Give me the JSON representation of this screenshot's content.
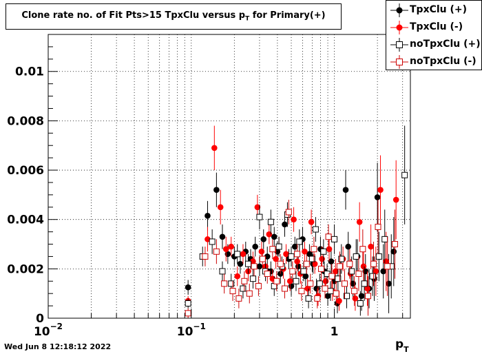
{
  "title": "Clone rate no. of Fit Pts>15 TpxClu versus p",
  "title_sub": "T",
  "title_tail": " for Primary(+)",
  "footer": "Wed Jun  8 12:18:12 2022",
  "chart_data": {
    "type": "scatter",
    "x_scale": "log",
    "xlim": [
      0.01,
      3.4
    ],
    "ylim": [
      0,
      0.0115
    ],
    "grid": true,
    "legend_position": "top-right",
    "xlabel": "p",
    "xlabel_sub": "T",
    "x_ticks": [
      {
        "value": 0.01,
        "base": "10",
        "exp": "−2"
      },
      {
        "value": 0.1,
        "base": "10",
        "exp": "−1"
      },
      {
        "value": 1,
        "base": "1",
        "exp": ""
      }
    ],
    "y_ticks": [
      {
        "value": 0,
        "label": "0"
      },
      {
        "value": 0.002,
        "label": "0.002"
      },
      {
        "value": 0.004,
        "label": "0.004"
      },
      {
        "value": 0.006,
        "label": "0.006"
      },
      {
        "value": 0.008,
        "label": "0.008"
      },
      {
        "value": 0.01,
        "label": "0.01"
      }
    ],
    "series": [
      {
        "name": "TpxClu (+)",
        "marker": "filled-circle",
        "color": "#000000",
        "points": [
          [
            0.095,
            0.00125,
            0.0003
          ],
          [
            0.13,
            0.00415,
            0.0006
          ],
          [
            0.15,
            0.0052,
            0.0007
          ],
          [
            0.165,
            0.0033,
            0.0005
          ],
          [
            0.18,
            0.0026,
            0.0004
          ],
          [
            0.2,
            0.0025,
            0.0004
          ],
          [
            0.22,
            0.0022,
            0.0004
          ],
          [
            0.24,
            0.0027,
            0.0004
          ],
          [
            0.26,
            0.0024,
            0.0004
          ],
          [
            0.28,
            0.0029,
            0.0004
          ],
          [
            0.3,
            0.0021,
            0.0004
          ],
          [
            0.32,
            0.0032,
            0.0004
          ],
          [
            0.34,
            0.0025,
            0.0004
          ],
          [
            0.36,
            0.0019,
            0.0004
          ],
          [
            0.38,
            0.0033,
            0.0004
          ],
          [
            0.4,
            0.0027,
            0.0004
          ],
          [
            0.42,
            0.0018,
            0.0004
          ],
          [
            0.45,
            0.0038,
            0.0005
          ],
          [
            0.48,
            0.0024,
            0.0004
          ],
          [
            0.5,
            0.0013,
            0.0004
          ],
          [
            0.53,
            0.0029,
            0.0004
          ],
          [
            0.56,
            0.0021,
            0.0004
          ],
          [
            0.6,
            0.0032,
            0.0005
          ],
          [
            0.63,
            0.0017,
            0.0004
          ],
          [
            0.67,
            0.0026,
            0.0004
          ],
          [
            0.71,
            0.0022,
            0.0004
          ],
          [
            0.75,
            0.0012,
            0.0004
          ],
          [
            0.8,
            0.0028,
            0.0005
          ],
          [
            0.85,
            0.0019,
            0.0004
          ],
          [
            0.9,
            0.0009,
            0.0004
          ],
          [
            0.95,
            0.0023,
            0.0005
          ],
          [
            1.0,
            0.0015,
            0.0005
          ],
          [
            1.05,
            0.0006,
            0.0004
          ],
          [
            1.1,
            0.0021,
            0.0005
          ],
          [
            1.2,
            0.0052,
            0.0008
          ],
          [
            1.25,
            0.0029,
            0.0006
          ],
          [
            1.35,
            0.0014,
            0.0006
          ],
          [
            1.45,
            0.0025,
            0.0007
          ],
          [
            1.55,
            0.0009,
            0.0006
          ],
          [
            1.65,
            0.0019,
            0.0007
          ],
          [
            1.75,
            0.0012,
            0.0008
          ],
          [
            1.9,
            0.0016,
            0.0009
          ],
          [
            2.0,
            0.0049,
            0.0014
          ],
          [
            2.2,
            0.0019,
            0.0011
          ],
          [
            2.4,
            0.0014,
            0.0012
          ],
          [
            2.6,
            0.0027,
            0.0014
          ]
        ]
      },
      {
        "name": "TpxClu (-)",
        "marker": "filled-circle",
        "color": "#ff0000",
        "points": [
          [
            0.095,
            0.0007,
            0.0002
          ],
          [
            0.13,
            0.0032,
            0.0005
          ],
          [
            0.145,
            0.0069,
            0.0009
          ],
          [
            0.16,
            0.0045,
            0.0007
          ],
          [
            0.175,
            0.0028,
            0.0005
          ],
          [
            0.19,
            0.0029,
            0.0004
          ],
          [
            0.21,
            0.0017,
            0.0004
          ],
          [
            0.23,
            0.0026,
            0.0004
          ],
          [
            0.25,
            0.0019,
            0.0004
          ],
          [
            0.27,
            0.0023,
            0.0004
          ],
          [
            0.29,
            0.0045,
            0.0005
          ],
          [
            0.31,
            0.0027,
            0.0004
          ],
          [
            0.33,
            0.0021,
            0.0004
          ],
          [
            0.35,
            0.0034,
            0.0004
          ],
          [
            0.37,
            0.0016,
            0.0004
          ],
          [
            0.39,
            0.0024,
            0.0004
          ],
          [
            0.41,
            0.0029,
            0.0004
          ],
          [
            0.44,
            0.002,
            0.0004
          ],
          [
            0.46,
            0.0026,
            0.0004
          ],
          [
            0.49,
            0.0015,
            0.0004
          ],
          [
            0.52,
            0.004,
            0.0005
          ],
          [
            0.55,
            0.0023,
            0.0004
          ],
          [
            0.58,
            0.0018,
            0.0004
          ],
          [
            0.62,
            0.0027,
            0.0004
          ],
          [
            0.65,
            0.0012,
            0.0004
          ],
          [
            0.69,
            0.0039,
            0.0005
          ],
          [
            0.73,
            0.0022,
            0.0004
          ],
          [
            0.77,
            0.0009,
            0.0004
          ],
          [
            0.82,
            0.0024,
            0.0005
          ],
          [
            0.87,
            0.0015,
            0.0004
          ],
          [
            0.92,
            0.0028,
            0.0005
          ],
          [
            0.97,
            0.0011,
            0.0004
          ],
          [
            1.02,
            0.0019,
            0.0005
          ],
          [
            1.08,
            0.0007,
            0.0004
          ],
          [
            1.15,
            0.0024,
            0.0005
          ],
          [
            1.3,
            0.0018,
            0.0006
          ],
          [
            1.4,
            0.0008,
            0.0005
          ],
          [
            1.5,
            0.0039,
            0.0008
          ],
          [
            1.6,
            0.0021,
            0.0007
          ],
          [
            1.7,
            0.0012,
            0.0007
          ],
          [
            1.8,
            0.0029,
            0.0009
          ],
          [
            1.95,
            0.0019,
            0.001
          ],
          [
            2.1,
            0.0052,
            0.0014
          ],
          [
            2.3,
            0.0023,
            0.0012
          ],
          [
            2.7,
            0.0048,
            0.0016
          ]
        ]
      },
      {
        "name": "noTpxClu (+)",
        "marker": "open-square",
        "color": "#000000",
        "points": [
          [
            0.095,
            0.0006,
            0.0002
          ],
          [
            0.12,
            0.0025,
            0.0004
          ],
          [
            0.14,
            0.0031,
            0.0005
          ],
          [
            0.165,
            0.0019,
            0.0004
          ],
          [
            0.19,
            0.0014,
            0.0004
          ],
          [
            0.21,
            0.0026,
            0.0004
          ],
          [
            0.23,
            0.0012,
            0.0004
          ],
          [
            0.25,
            0.0022,
            0.0004
          ],
          [
            0.27,
            0.0016,
            0.0004
          ],
          [
            0.3,
            0.0041,
            0.0005
          ],
          [
            0.33,
            0.0019,
            0.0004
          ],
          [
            0.36,
            0.0039,
            0.0005
          ],
          [
            0.38,
            0.0013,
            0.0004
          ],
          [
            0.41,
            0.0029,
            0.0004
          ],
          [
            0.43,
            0.0021,
            0.0004
          ],
          [
            0.47,
            0.0042,
            0.0005
          ],
          [
            0.5,
            0.0025,
            0.0004
          ],
          [
            0.54,
            0.0015,
            0.0004
          ],
          [
            0.57,
            0.0031,
            0.0005
          ],
          [
            0.61,
            0.0019,
            0.0004
          ],
          [
            0.66,
            0.0008,
            0.0004
          ],
          [
            0.7,
            0.0024,
            0.0005
          ],
          [
            0.74,
            0.0036,
            0.0005
          ],
          [
            0.79,
            0.0014,
            0.0004
          ],
          [
            0.84,
            0.0027,
            0.0005
          ],
          [
            0.89,
            0.0018,
            0.0004
          ],
          [
            0.94,
            0.0011,
            0.0004
          ],
          [
            1.0,
            0.0032,
            0.0006
          ],
          [
            1.06,
            0.0016,
            0.0005
          ],
          [
            1.12,
            0.0024,
            0.0006
          ],
          [
            1.22,
            0.0009,
            0.0005
          ],
          [
            1.32,
            0.0019,
            0.0006
          ],
          [
            1.42,
            0.0025,
            0.0007
          ],
          [
            1.52,
            0.0006,
            0.0005
          ],
          [
            1.62,
            0.0014,
            0.0007
          ],
          [
            1.85,
            0.0017,
            0.0008
          ],
          [
            2.05,
            0.0025,
            0.001
          ],
          [
            2.25,
            0.0032,
            0.0012
          ],
          [
            2.5,
            0.0021,
            0.0013
          ],
          [
            3.1,
            0.0058,
            0.002
          ]
        ]
      },
      {
        "name": "noTpxClu (-)",
        "marker": "open-square",
        "color": "#cc0000",
        "points": [
          [
            0.095,
            0.0002,
            0.0002
          ],
          [
            0.125,
            0.0025,
            0.0004
          ],
          [
            0.15,
            0.0027,
            0.0005
          ],
          [
            0.17,
            0.0014,
            0.0004
          ],
          [
            0.195,
            0.0011,
            0.0004
          ],
          [
            0.215,
            0.0008,
            0.0004
          ],
          [
            0.235,
            0.0015,
            0.0004
          ],
          [
            0.255,
            0.001,
            0.0004
          ],
          [
            0.275,
            0.0021,
            0.0004
          ],
          [
            0.295,
            0.0013,
            0.0004
          ],
          [
            0.315,
            0.0024,
            0.0004
          ],
          [
            0.34,
            0.0018,
            0.0004
          ],
          [
            0.37,
            0.0028,
            0.0004
          ],
          [
            0.395,
            0.0015,
            0.0004
          ],
          [
            0.42,
            0.0022,
            0.0004
          ],
          [
            0.45,
            0.0012,
            0.0004
          ],
          [
            0.48,
            0.0043,
            0.0005
          ],
          [
            0.51,
            0.0019,
            0.0004
          ],
          [
            0.55,
            0.0026,
            0.0004
          ],
          [
            0.59,
            0.0011,
            0.0004
          ],
          [
            0.64,
            0.0022,
            0.0004
          ],
          [
            0.68,
            0.0014,
            0.0004
          ],
          [
            0.72,
            0.0028,
            0.0005
          ],
          [
            0.76,
            0.0008,
            0.0004
          ],
          [
            0.81,
            0.002,
            0.0005
          ],
          [
            0.86,
            0.0012,
            0.0004
          ],
          [
            0.91,
            0.0033,
            0.0005
          ],
          [
            0.96,
            0.0017,
            0.0005
          ],
          [
            1.03,
            0.001,
            0.0005
          ],
          [
            1.09,
            0.0021,
            0.0006
          ],
          [
            1.18,
            0.0014,
            0.0006
          ],
          [
            1.28,
            0.0022,
            0.0006
          ],
          [
            1.38,
            0.0011,
            0.0006
          ],
          [
            1.48,
            0.0018,
            0.0007
          ],
          [
            1.58,
            0.0028,
            0.0008
          ],
          [
            1.72,
            0.0009,
            0.0008
          ],
          [
            1.88,
            0.0022,
            0.0009
          ],
          [
            2.02,
            0.0037,
            0.0011
          ],
          [
            2.35,
            0.0021,
            0.0012
          ],
          [
            2.65,
            0.003,
            0.0014
          ]
        ]
      }
    ]
  }
}
